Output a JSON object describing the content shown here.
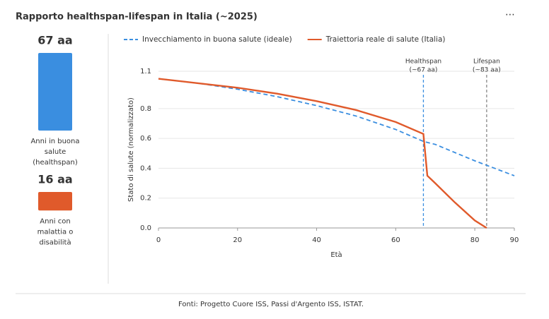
{
  "header": {
    "title": "Rapporto healthspan-lifespan in Italia (~2025)",
    "menu": "⋯"
  },
  "summary": [
    {
      "value": 67,
      "value_label": "67 aa",
      "color": "#3a8ee0",
      "text_color": "#1f5ea8",
      "label": [
        "Anni in buona",
        "salute",
        "(healthspan)"
      ]
    },
    {
      "value": 16,
      "value_label": "16 aa",
      "color": "#e05a2b",
      "text_color": "#a8421c",
      "label": [
        "Anni con",
        "malattia o",
        "disabilità"
      ]
    }
  ],
  "chart_data": {
    "type": "line",
    "x_label": "Età",
    "y_label": "Stato di salute (normalizzato)",
    "xlim": [
      0,
      90
    ],
    "xticks": [
      0,
      20,
      40,
      60,
      80,
      90
    ],
    "ylim": [
      0,
      1.05
    ],
    "yticks": [
      {
        "value": 0,
        "label": "0.0"
      },
      0.2,
      0.4,
      0.6,
      0.8,
      {
        "value": 1.05,
        "label": "1.1"
      }
    ],
    "grid": true,
    "series": [
      {
        "name": "Invecchiamento in buona salute (ideale)",
        "color": "#3a8ee0",
        "dashed": true,
        "x": [
          0,
          10,
          20,
          30,
          40,
          50,
          60,
          67,
          70,
          80,
          83,
          90
        ],
        "values": [
          1.0,
          0.97,
          0.93,
          0.88,
          0.82,
          0.75,
          0.66,
          0.58,
          0.56,
          0.45,
          0.42,
          0.35
        ]
      },
      {
        "name": "Traiettoria reale di salute (Italia)",
        "color": "#e05a2b",
        "dashed": false,
        "x": [
          0,
          10,
          20,
          30,
          40,
          50,
          60,
          67,
          68,
          70,
          75,
          80,
          83
        ],
        "values": [
          1.0,
          0.97,
          0.94,
          0.9,
          0.85,
          0.79,
          0.71,
          0.63,
          0.35,
          0.3,
          0.17,
          0.05,
          0.0
        ]
      }
    ],
    "annotations": [
      {
        "x": 67,
        "label": [
          "Healthspan",
          "(~67 aa)"
        ],
        "color": "#3a8ee0"
      },
      {
        "x": 83,
        "label": [
          "Lifespan",
          "(~83 aa)"
        ],
        "color": "#888888"
      }
    ]
  },
  "footer": "Fonti: Progetto Cuore ISS, Passi d'Argento ISS, ISTAT."
}
